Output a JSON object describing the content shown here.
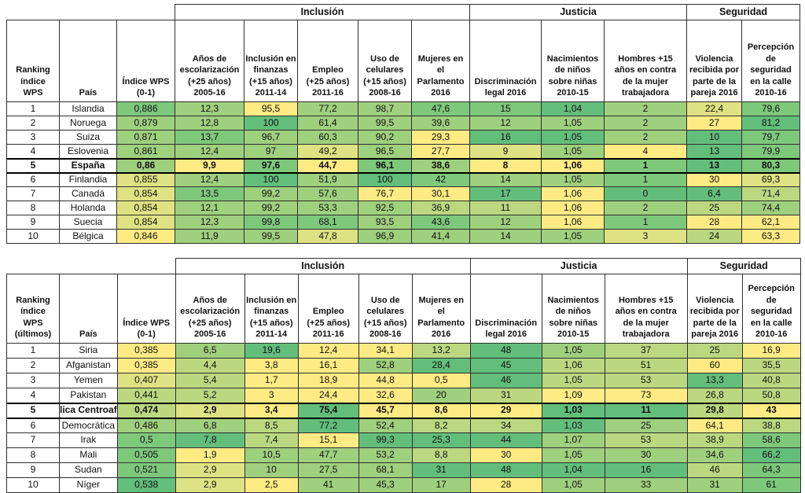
{
  "palette": {
    "g1": "#63BE7B",
    "g2": "#7EC87C",
    "g3": "#9FD07E",
    "g4": "#BBD881",
    "g5": "#DFE283",
    "g6": "#FFEB84"
  },
  "chart_data": [
    {
      "type": "table",
      "group_headers": [
        {
          "label": "Inclusión",
          "span": 5
        },
        {
          "label": "Justicia",
          "span": 3
        },
        {
          "label": "Seguridad",
          "span": 2
        }
      ],
      "columns": [
        "Ranking\níndice\nWPS",
        "País",
        "Índice WPS\n(0-1)",
        "Años de\nescolarización\n(+25 años)\n2005-16",
        "Inclusión en\nfinanzas\n(+15 años)\n2011-14",
        "Empleo\n(+25 años)\n2011-16",
        "Uso de\ncelulares\n(+15 años)\n2008-16",
        "Mujeres en\nel\nParlamento\n2016",
        "Discriminación\nlegal 2016",
        "Nacimientos\nde niños\nsobre niñas\n2010-15",
        "Hombres +15\naños en contra\nde la mujer\ntrabajadora",
        "Violencia\nrecibida por\nparte de la\npareja 2016",
        "Percepción\nde\nseguridad\nen la calle\n2010-16"
      ],
      "rows": [
        {
          "rank": "1",
          "country": "Islandia",
          "bold": false,
          "values": [
            "0,886",
            "12,3",
            "95,5",
            "77,2",
            "98,7",
            "47,6",
            "15",
            "1,04",
            "2",
            "22,4",
            "79,6"
          ],
          "colors": [
            "g2",
            "g3",
            "g6",
            "g3",
            "g3",
            "g2",
            "g2",
            "g1",
            "g3",
            "g5",
            "g2"
          ]
        },
        {
          "rank": "2",
          "country": "Noruega",
          "bold": false,
          "values": [
            "0,879",
            "12,8",
            "100",
            "61,4",
            "99,5",
            "39,6",
            "12",
            "1,05",
            "2",
            "27",
            "81,2"
          ],
          "colors": [
            "g3",
            "g3",
            "g1",
            "g3",
            "g3",
            "g3",
            "g3",
            "g3",
            "g3",
            "g6",
            "g1"
          ]
        },
        {
          "rank": "3",
          "country": "Suiza",
          "bold": false,
          "values": [
            "0,871",
            "13,7",
            "96,7",
            "60,3",
            "90,2",
            "29,3",
            "16",
            "1,05",
            "2",
            "10",
            "79,7"
          ],
          "colors": [
            "g3",
            "g2",
            "g3",
            "g3",
            "g3",
            "g6",
            "g1",
            "g1",
            "g3",
            "g1",
            "g2"
          ]
        },
        {
          "rank": "4",
          "country": "Eslovenia",
          "bold": false,
          "values": [
            "0,861",
            "12,4",
            "97",
            "49,2",
            "96,5",
            "27,7",
            "9",
            "1,05",
            "4",
            "13",
            "79,9"
          ],
          "colors": [
            "g3",
            "g3",
            "g3",
            "g5",
            "g3",
            "g6",
            "g5",
            "g3",
            "g6",
            "g1",
            "g2"
          ]
        },
        {
          "rank": "5",
          "country": "España",
          "bold": true,
          "values": [
            "0,86",
            "9,9",
            "97,6",
            "44,7",
            "96,1",
            "38,6",
            "8",
            "1,06",
            "1",
            "13",
            "80,3"
          ],
          "colors": [
            "g3",
            "g6",
            "g2",
            "g6",
            "g2",
            "g3",
            "g6",
            "g6",
            "g2",
            "g1",
            "g2"
          ]
        },
        {
          "rank": "6",
          "country": "Finlandia",
          "bold": false,
          "values": [
            "0,855",
            "12,4",
            "100",
            "51,9",
            "100",
            "42",
            "14",
            "1,05",
            "1",
            "30",
            "69,3"
          ],
          "colors": [
            "g5",
            "g3",
            "g1",
            "g3",
            "g1",
            "g2",
            "g3",
            "g3",
            "g2",
            "g6",
            "g5"
          ]
        },
        {
          "rank": "7",
          "country": "Canadá",
          "bold": false,
          "values": [
            "0,854",
            "13,5",
            "99,2",
            "57,6",
            "76,7",
            "30,1",
            "17",
            "1,06",
            "0",
            "6,4",
            "71,4"
          ],
          "colors": [
            "g5",
            "g2",
            "g3",
            "g3",
            "g6",
            "g6",
            "g1",
            "g6",
            "g1",
            "g1",
            "g4"
          ]
        },
        {
          "rank": "8",
          "country": "Holanda",
          "bold": false,
          "values": [
            "0,854",
            "12,1",
            "99,2",
            "53,3",
            "92,5",
            "36,9",
            "11",
            "1,06",
            "2",
            "25",
            "74,4"
          ],
          "colors": [
            "g5",
            "g3",
            "g3",
            "g3",
            "g3",
            "g4",
            "g4",
            "g6",
            "g3",
            "g4",
            "g3"
          ]
        },
        {
          "rank": "9",
          "country": "Suecia",
          "bold": false,
          "values": [
            "0,854",
            "12,3",
            "99,8",
            "68,1",
            "93,5",
            "43,6",
            "12",
            "1,06",
            "1",
            "28",
            "62,1"
          ],
          "colors": [
            "g5",
            "g3",
            "g2",
            "g2",
            "g3",
            "g2",
            "g3",
            "g6",
            "g2",
            "g6",
            "g6"
          ]
        },
        {
          "rank": "10",
          "country": "Bélgica",
          "bold": false,
          "values": [
            "0,846",
            "11,9",
            "99,5",
            "47,8",
            "96,9",
            "41,4",
            "14",
            "1,05",
            "3",
            "24",
            "63,3"
          ],
          "colors": [
            "g6",
            "g3",
            "g3",
            "g5",
            "g3",
            "g3",
            "g3",
            "g3",
            "g5",
            "g4",
            "g6"
          ]
        }
      ]
    },
    {
      "type": "table",
      "group_headers": [
        {
          "label": "Inclusión",
          "span": 5
        },
        {
          "label": "Justicia",
          "span": 3
        },
        {
          "label": "Seguridad",
          "span": 2
        }
      ],
      "columns": [
        "Ranking\níndice\nWPS\n(últimos)",
        "País",
        "Índice WPS\n(0-1)",
        "Años de\nescolarización\n(+25 años)\n2005-16",
        "Inclusión en\nfinanzas\n(+15 años)\n2011-14",
        "Empleo\n(+25 años)\n2011-16",
        "Uso de\ncelulares\n(+15 años)\n2008-16",
        "Mujeres en\nel\nParlamento\n2016",
        "Discriminación\nlegal 2016",
        "Nacimientos\nde niños\nsobre niñas\n2010-15",
        "Hombres +15\naños en contra\nde la mujer\ntrabajadora",
        "Violencia\nrecibida por\nparte de la\npareja 2016",
        "Percepción\nde\nseguridad\nen la calle\n2010-16"
      ],
      "rows": [
        {
          "rank": "1",
          "country": "Siria",
          "bold": false,
          "values": [
            "0,385",
            "6,5",
            "19,6",
            "12,4",
            "34,1",
            "13,2",
            "48",
            "1,05",
            "37",
            "25",
            "16,9"
          ],
          "colors": [
            "g6",
            "g3",
            "g1",
            "g6",
            "g6",
            "g4",
            "g1",
            "g3",
            "g4",
            "g4",
            "g6"
          ]
        },
        {
          "rank": "2",
          "country": "Afganistan",
          "bold": false,
          "values": [
            "0,385",
            "4,4",
            "3,8",
            "16,1",
            "52,8",
            "28,4",
            "45",
            "1,06",
            "51",
            "60",
            "35,5"
          ],
          "colors": [
            "g6",
            "g4",
            "g6",
            "g6",
            "g3",
            "g1",
            "g1",
            "g4",
            "g4",
            "g6",
            "g4"
          ]
        },
        {
          "rank": "3",
          "country": "Yemen",
          "bold": false,
          "values": [
            "0,407",
            "5,4",
            "1,7",
            "18,9",
            "44,8",
            "0,5",
            "46",
            "1,05",
            "53",
            "13,3",
            "40,8"
          ],
          "colors": [
            "g5",
            "g4",
            "g6",
            "g6",
            "g6",
            "g6",
            "g1",
            "g4",
            "g4",
            "g1",
            "g4"
          ]
        },
        {
          "rank": "4",
          "country": "Pakistan",
          "bold": false,
          "values": [
            "0,441",
            "5,2",
            "3",
            "24,4",
            "32,6",
            "20",
            "31",
            "1,09",
            "73",
            "26,8",
            "50,8"
          ],
          "colors": [
            "g4",
            "g4",
            "g6",
            "g6",
            "g6",
            "g3",
            "g4",
            "g6",
            "g6",
            "g4",
            "g4"
          ]
        },
        {
          "rank": "5",
          "country": "lica Centroaf",
          "bold": true,
          "values": [
            "0,474",
            "2,9",
            "3,4",
            "75,4",
            "45,7",
            "8,6",
            "29",
            "1,03",
            "11",
            "29,8",
            "43"
          ],
          "colors": [
            "g4",
            "g5",
            "g6",
            "g1",
            "g6",
            "g6",
            "g6",
            "g1",
            "g1",
            "g4",
            "g6"
          ]
        },
        {
          "rank": "6",
          "country": "Democrática",
          "bold": false,
          "values": [
            "0,486",
            "6,8",
            "8,5",
            "77,2",
            "52,4",
            "8,2",
            "34",
            "1,03",
            "25",
            "64,1",
            "38,8"
          ],
          "colors": [
            "g3",
            "g3",
            "g4",
            "g1",
            "g3",
            "g4",
            "g4",
            "g1",
            "g3",
            "g6",
            "g4"
          ]
        },
        {
          "rank": "7",
          "country": "Irak",
          "bold": false,
          "values": [
            "0,5",
            "7,8",
            "7,4",
            "15,1",
            "99,3",
            "25,3",
            "44",
            "1,07",
            "53",
            "38,9",
            "58,6"
          ],
          "colors": [
            "g2",
            "g1",
            "g4",
            "g6",
            "g1",
            "g1",
            "g1",
            "g3",
            "g4",
            "g4",
            "g2"
          ]
        },
        {
          "rank": "8",
          "country": "Mali",
          "bold": false,
          "values": [
            "0,505",
            "1,9",
            "10,5",
            "47,7",
            "53,2",
            "8,8",
            "30",
            "1,05",
            "30",
            "34,6",
            "66,2"
          ],
          "colors": [
            "g2",
            "g6",
            "g3",
            "g3",
            "g3",
            "g4",
            "g6",
            "g3",
            "g3",
            "g3",
            "g1"
          ]
        },
        {
          "rank": "9",
          "country": "Sudan",
          "bold": false,
          "values": [
            "0,521",
            "2,9",
            "10",
            "27,5",
            "68,1",
            "31",
            "48",
            "1,04",
            "16",
            "46",
            "64,3"
          ],
          "colors": [
            "g2",
            "g5",
            "g3",
            "g3",
            "g3",
            "g1",
            "g1",
            "g1",
            "g1",
            "g4",
            "g2"
          ]
        },
        {
          "rank": "10",
          "country": "Níger",
          "bold": false,
          "values": [
            "0,538",
            "2,9",
            "2,5",
            "41",
            "45,3",
            "17",
            "28",
            "1,05",
            "33",
            "31",
            "61"
          ],
          "colors": [
            "g1",
            "g5",
            "g6",
            "g3",
            "g3",
            "g3",
            "g6",
            "g3",
            "g3",
            "g3",
            "g2"
          ]
        }
      ]
    }
  ]
}
